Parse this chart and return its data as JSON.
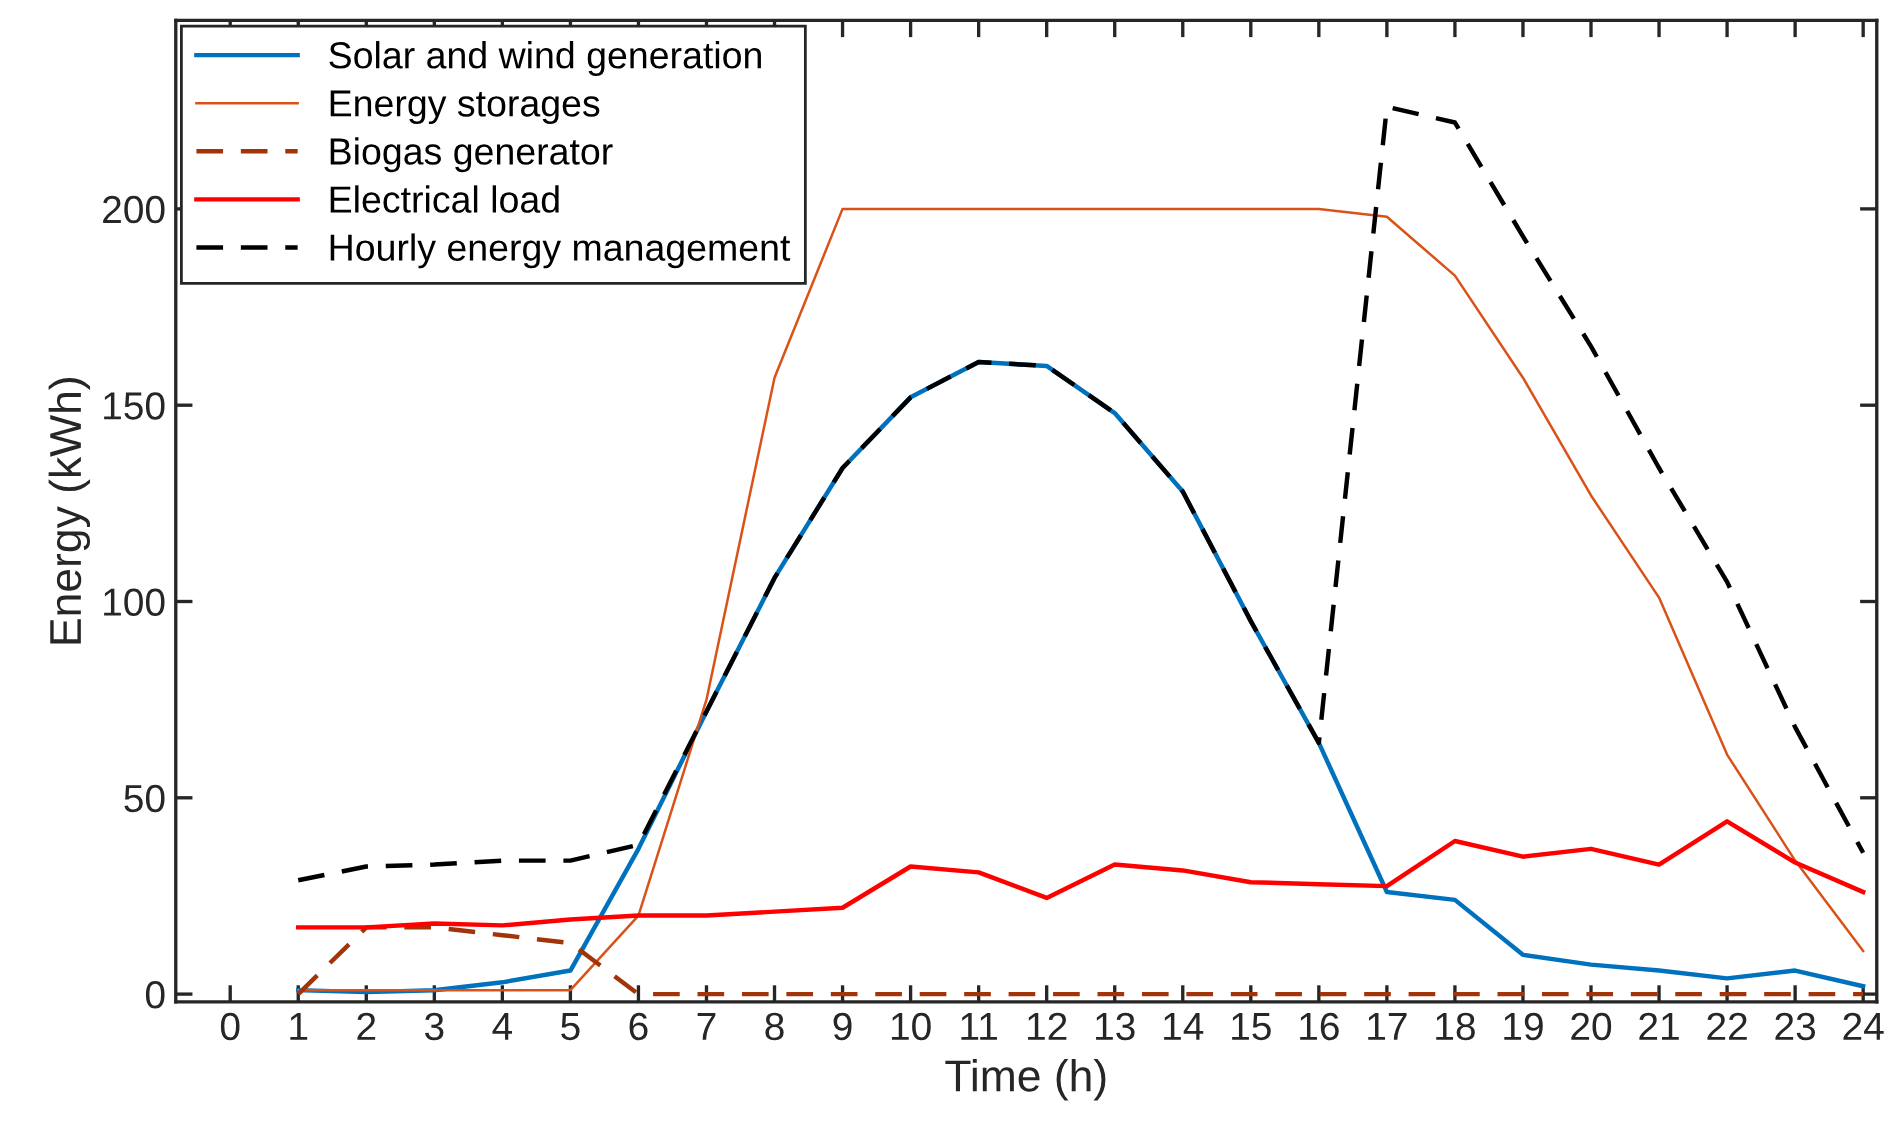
{
  "chart_data": {
    "type": "line",
    "xlabel": "Time (h)",
    "ylabel": "Energy (kWh)",
    "x": [
      1,
      2,
      3,
      4,
      5,
      6,
      7,
      8,
      9,
      10,
      11,
      12,
      13,
      14,
      15,
      16,
      17,
      18,
      19,
      20,
      21,
      22,
      23,
      24
    ],
    "xlim": [
      -0.8,
      24.2
    ],
    "xticks": [
      0,
      1,
      2,
      3,
      4,
      5,
      6,
      7,
      8,
      9,
      10,
      11,
      12,
      13,
      14,
      15,
      16,
      17,
      18,
      19,
      20,
      21,
      22,
      23,
      24
    ],
    "ylim": [
      -2,
      248
    ],
    "yticks": [
      0,
      50,
      100,
      150,
      200
    ],
    "legend": "top left",
    "grid": false,
    "marker": "none",
    "series": [
      {
        "name": "Solar and wind generation",
        "color": "#0072bd",
        "line_style": "solid",
        "values": [
          1,
          0.5,
          1,
          3,
          6,
          37,
          72,
          106,
          134,
          152,
          161,
          160,
          148,
          128,
          95,
          64,
          26,
          24,
          10,
          7.5,
          6,
          4,
          6,
          2
        ]
      },
      {
        "name": "Energy storages",
        "color": "#d95319",
        "line_style": "solid",
        "values": [
          1,
          1,
          1,
          1,
          1,
          20,
          75,
          157,
          200,
          200,
          200,
          200,
          200,
          200,
          200,
          200,
          198,
          183,
          157,
          127,
          101,
          61,
          34,
          11
        ]
      },
      {
        "name": "Biogas generator",
        "color": "#a2340a",
        "line_style": "dashed",
        "values": [
          0,
          17,
          17,
          15,
          13,
          0,
          0,
          0,
          0,
          0,
          0,
          0,
          0,
          0,
          0,
          0,
          0,
          0,
          0,
          0,
          0,
          0,
          0,
          0
        ]
      },
      {
        "name": "Electrical load",
        "color": "#ff0000",
        "line_style": "solid",
        "values": [
          17,
          17,
          18,
          17.5,
          19,
          20,
          20,
          21,
          22,
          32.5,
          31,
          24.5,
          33,
          31.5,
          28.5,
          28,
          27.5,
          39,
          35,
          37,
          33,
          44,
          33.5,
          26
        ]
      },
      {
        "name": "Hourly energy management",
        "color": "#000000",
        "line_style": "dashed",
        "values": [
          29,
          32.5,
          33,
          34,
          34,
          38,
          72,
          106,
          134,
          152,
          161,
          160,
          148,
          128,
          95,
          64,
          226,
          222,
          193,
          165,
          134,
          105,
          68,
          36
        ]
      }
    ]
  }
}
